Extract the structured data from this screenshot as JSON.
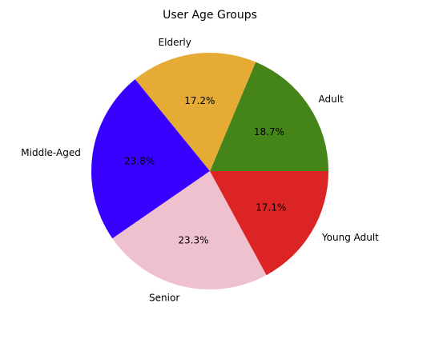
{
  "chart_data": {
    "type": "pie",
    "title": "User Age Groups",
    "start_angle_deg": 0,
    "direction": "counterclockwise",
    "slices": [
      {
        "label": "Adult",
        "value": 18.7,
        "pct_label": "18.7%",
        "color": "#458418"
      },
      {
        "label": "Elderly",
        "value": 17.2,
        "pct_label": "17.2%",
        "color": "#e6ab35"
      },
      {
        "label": "Middle-Aged",
        "value": 23.8,
        "pct_label": "23.8%",
        "color": "#3700ff"
      },
      {
        "label": "Senior",
        "value": 23.3,
        "pct_label": "23.3%",
        "color": "#efc0cd"
      },
      {
        "label": "Young Adult",
        "value": 17.1,
        "pct_label": "17.1%",
        "color": "#dc2424"
      }
    ]
  }
}
